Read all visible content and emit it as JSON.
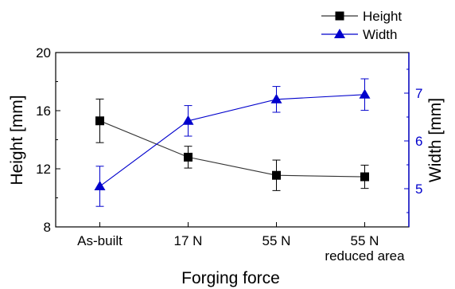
{
  "chart_data": {
    "type": "line",
    "title": "",
    "xlabel": "Forging force",
    "categories": [
      "As-built",
      "17 N",
      "55 N",
      "55 N\nreduced area"
    ],
    "ylabel_left": "Height [mm]",
    "ylabel_right": "Width [mm]",
    "ylim_left": [
      8,
      20
    ],
    "yticks_left": [
      8,
      12,
      16,
      20
    ],
    "ylim_right": [
      4.2,
      7.85
    ],
    "yticks_right": [
      5,
      6,
      7
    ],
    "grid": false,
    "legend_position": "top-right",
    "series": [
      {
        "name": "Height",
        "axis": "left",
        "marker": "square",
        "color": "#000000",
        "line_color": "#333333",
        "values": [
          15.3,
          12.8,
          11.55,
          11.45
        ],
        "error": [
          1.5,
          0.75,
          1.05,
          0.8
        ]
      },
      {
        "name": "Width",
        "axis": "right",
        "marker": "triangle",
        "color": "#0000cc",
        "values": [
          5.05,
          6.42,
          6.87,
          6.97
        ],
        "error": [
          0.42,
          0.32,
          0.27,
          0.33
        ]
      }
    ]
  }
}
